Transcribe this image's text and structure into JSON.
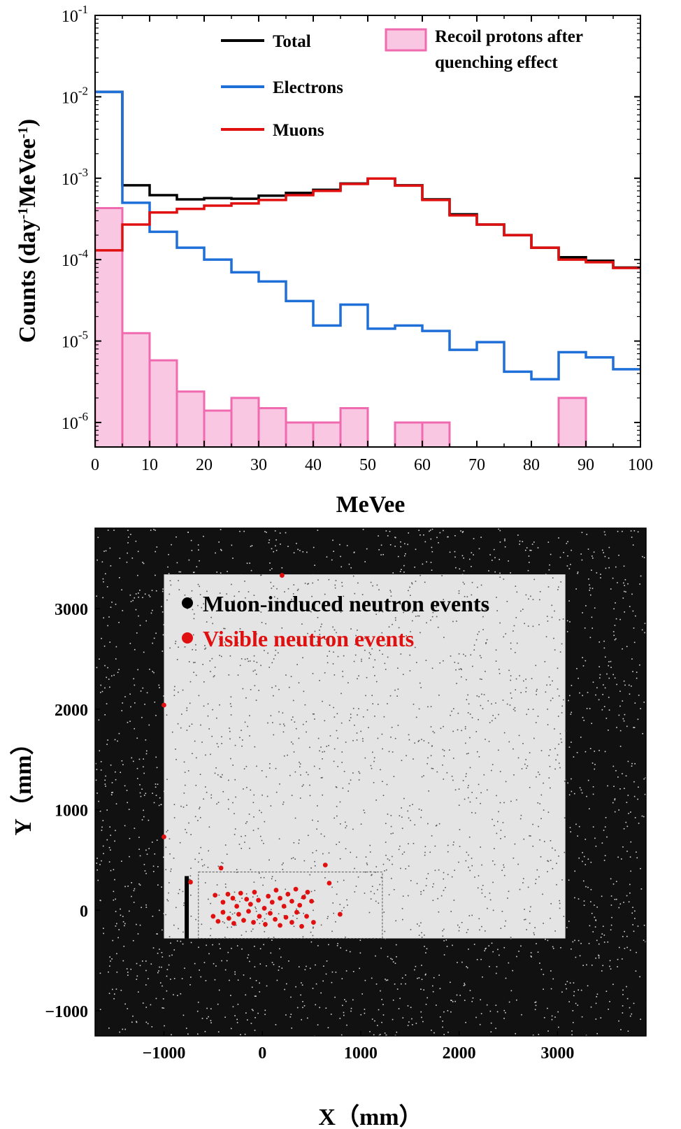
{
  "chart_data": [
    {
      "type": "histogram",
      "xlabel": "MeVee",
      "ylabel": "Counts (day",
      "ylabel_sup1": "-1",
      "ylabel_mid": "MeVee",
      "ylabel_sup2": "-1",
      "ylabel_end": ")",
      "xlim": [
        0,
        100
      ],
      "ylim": [
        5e-07,
        0.1
      ],
      "yscale": "log",
      "x_ticks": [
        0,
        10,
        20,
        30,
        40,
        50,
        60,
        70,
        80,
        90,
        100
      ],
      "y_ticks": [
        {
          "value": 1e-06,
          "base": "10",
          "exp": "-6"
        },
        {
          "value": 1e-05,
          "base": "10",
          "exp": "-5"
        },
        {
          "value": 0.0001,
          "base": "10",
          "exp": "-4"
        },
        {
          "value": 0.001,
          "base": "10",
          "exp": "-3"
        },
        {
          "value": 0.01,
          "base": "10",
          "exp": "-2"
        },
        {
          "value": 0.1,
          "base": "10",
          "exp": "-1"
        }
      ],
      "bin_edges": [
        0,
        5,
        10,
        15,
        20,
        25,
        30,
        35,
        40,
        45,
        50,
        55,
        60,
        65,
        70,
        75,
        80,
        85,
        90,
        95,
        100
      ],
      "series": [
        {
          "name": "Total",
          "color": "#000000",
          "values": [
            0.0115,
            0.00082,
            0.00062,
            0.00055,
            0.00057,
            0.00056,
            0.00061,
            0.00066,
            0.00072,
            0.00086,
            0.00099,
            0.00082,
            0.00055,
            0.00036,
            0.00027,
            0.0002,
            0.00014,
            0.000107,
            9.7e-05,
            8e-05
          ]
        },
        {
          "name": "Electrons",
          "color": "#1f6fd8",
          "values": [
            0.0115,
            0.0005,
            0.00022,
            0.00014,
            0.0001,
            7e-05,
            5.4e-05,
            3.1e-05,
            1.55e-05,
            2.8e-05,
            1.42e-05,
            1.55e-05,
            1.33e-05,
            7.8e-06,
            9.7e-06,
            4.2e-06,
            3.4e-06,
            7.3e-06,
            6.3e-06,
            4.5e-06
          ]
        },
        {
          "name": "Muons",
          "color": "#e01010",
          "values": [
            0.00013,
            0.00027,
            0.00038,
            0.00042,
            0.00046,
            0.00049,
            0.00054,
            0.00062,
            0.0007,
            0.00085,
            0.00099,
            0.00081,
            0.00054,
            0.00035,
            0.00027,
            0.0002,
            0.00014,
            0.0001,
            9.3e-05,
            7.9e-05
          ]
        },
        {
          "name": "Recoil protons after quenching effect",
          "color": "#f06ab0",
          "fill": "#f9c7e2",
          "values": [
            0.00043,
            1.25e-05,
            5.8e-06,
            2.4e-06,
            1.4e-06,
            2e-06,
            1.5e-06,
            1e-06,
            1e-06,
            1.5e-06,
            0,
            1e-06,
            1e-06,
            0,
            0,
            0,
            0,
            2e-06,
            0,
            0
          ]
        }
      ],
      "legend": [
        {
          "label": "Total",
          "color": "#000000",
          "kind": "line"
        },
        {
          "label": "Electrons",
          "color": "#1f6fd8",
          "kind": "line"
        },
        {
          "label": "Muons",
          "color": "#e01010",
          "kind": "line"
        },
        {
          "label_line1": "Recoil protons after",
          "label_line2": "quenching effect",
          "color": "#f06ab0",
          "fill": "#f9c7e2",
          "kind": "box"
        }
      ]
    },
    {
      "type": "scatter",
      "xlabel": "X（mm）",
      "ylabel": "Y（mm）",
      "xlim": [
        -1700,
        3900
      ],
      "ylim": [
        -1250,
        3800
      ],
      "x_ticks": [
        -1000,
        0,
        1000,
        2000,
        3000
      ],
      "y_ticks": [
        -1000,
        0,
        1000,
        2000,
        3000
      ],
      "inner_region": {
        "x": [
          -1000,
          3080
        ],
        "y": [
          -280,
          3340
        ]
      },
      "bottom_box": {
        "x": [
          -650,
          1220
        ],
        "y": [
          -280,
          380
        ]
      },
      "legend": [
        {
          "label": "Muon-induced neutron events",
          "color": "#000000"
        },
        {
          "label": "Visible neutron events",
          "color": "#e01010"
        }
      ],
      "series": [
        {
          "name": "Muon-induced neutron events",
          "color": "#000000",
          "density": "dense uniform"
        },
        {
          "name": "Visible neutron events",
          "color": "#e01010",
          "points": [
            [
              200,
              3330
            ],
            [
              -1000,
              2040
            ],
            [
              -1000,
              730
            ],
            [
              -420,
              420
            ],
            [
              640,
              450
            ],
            [
              -730,
              280
            ],
            [
              680,
              270
            ],
            [
              -480,
              150
            ],
            [
              -400,
              80
            ],
            [
              -350,
              160
            ],
            [
              -300,
              120
            ],
            [
              -260,
              40
            ],
            [
              -220,
              170
            ],
            [
              -160,
              110
            ],
            [
              -120,
              60
            ],
            [
              -80,
              180
            ],
            [
              -40,
              100
            ],
            [
              20,
              20
            ],
            [
              60,
              140
            ],
            [
              100,
              80
            ],
            [
              140,
              200
            ],
            [
              180,
              120
            ],
            [
              220,
              40
            ],
            [
              260,
              160
            ],
            [
              300,
              90
            ],
            [
              340,
              210
            ],
            [
              380,
              50
            ],
            [
              420,
              130
            ],
            [
              460,
              180
            ],
            [
              500,
              90
            ],
            [
              -500,
              -60
            ],
            [
              -450,
              -110
            ],
            [
              -400,
              -20
            ],
            [
              -340,
              -80
            ],
            [
              -290,
              -130
            ],
            [
              -240,
              -40
            ],
            [
              -190,
              -100
            ],
            [
              -140,
              -10
            ],
            [
              -90,
              -120
            ],
            [
              -30,
              -60
            ],
            [
              30,
              -140
            ],
            [
              80,
              -30
            ],
            [
              130,
              -90
            ],
            [
              180,
              -150
            ],
            [
              240,
              -70
            ],
            [
              300,
              -120
            ],
            [
              350,
              -20
            ],
            [
              400,
              -160
            ],
            [
              450,
              -60
            ],
            [
              520,
              -120
            ],
            [
              790,
              -40
            ]
          ]
        }
      ]
    }
  ]
}
